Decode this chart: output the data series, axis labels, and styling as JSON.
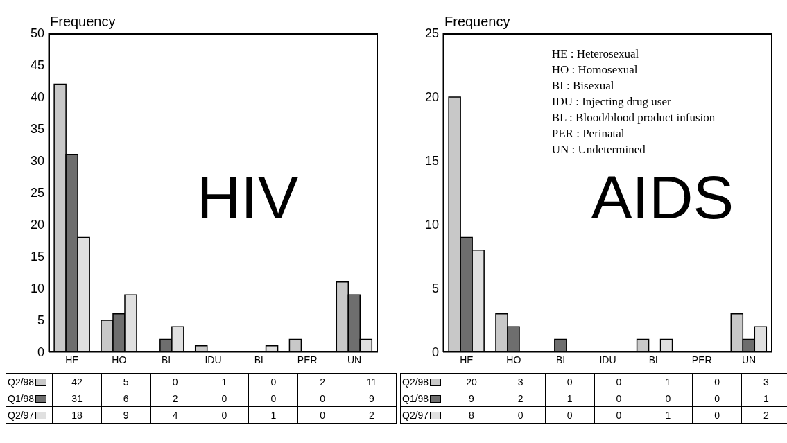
{
  "chart_data": [
    {
      "type": "bar",
      "title": "HIV",
      "ylabel": "Frequency",
      "categories": [
        "HE",
        "HO",
        "BI",
        "IDU",
        "BL",
        "PER",
        "UN"
      ],
      "series": [
        {
          "name": "Q2/98",
          "color": "#c8c8c8",
          "values": [
            42,
            5,
            0,
            1,
            0,
            2,
            11
          ]
        },
        {
          "name": "Q1/98",
          "color": "#6e6e6e",
          "values": [
            31,
            6,
            2,
            0,
            0,
            0,
            9
          ]
        },
        {
          "name": "Q2/97",
          "color": "#e0e0e0",
          "values": [
            18,
            9,
            4,
            0,
            1,
            0,
            2
          ]
        }
      ],
      "ylim": [
        0,
        50
      ],
      "yticks": [
        0,
        5,
        10,
        15,
        20,
        25,
        30,
        35,
        40,
        45,
        50
      ],
      "grid": false,
      "legend": "bottom",
      "data_labels": true
    },
    {
      "type": "bar",
      "title": "AIDS",
      "ylabel": "Frequency",
      "categories": [
        "HE",
        "HO",
        "BI",
        "IDU",
        "BL",
        "PER",
        "UN"
      ],
      "series": [
        {
          "name": "Q2/98",
          "color": "#c8c8c8",
          "values": [
            20,
            3,
            0,
            0,
            1,
            0,
            3
          ]
        },
        {
          "name": "Q1/98",
          "color": "#6e6e6e",
          "values": [
            9,
            2,
            1,
            0,
            0,
            0,
            1
          ]
        },
        {
          "name": "Q2/97",
          "color": "#e0e0e0",
          "values": [
            8,
            0,
            0,
            0,
            1,
            0,
            2
          ]
        }
      ],
      "ylim": [
        0,
        25
      ],
      "yticks": [
        0,
        5,
        10,
        15,
        20,
        25
      ],
      "grid": false,
      "legend": "bottom",
      "data_labels": true,
      "annotations": [
        "HE : Heterosexual",
        "HO : Homosexual",
        "BI : Bisexual",
        "IDU : Injecting drug user",
        "BL : Blood/blood product infusion",
        "PER : Perinatal",
        "UN : Undetermined"
      ]
    }
  ]
}
